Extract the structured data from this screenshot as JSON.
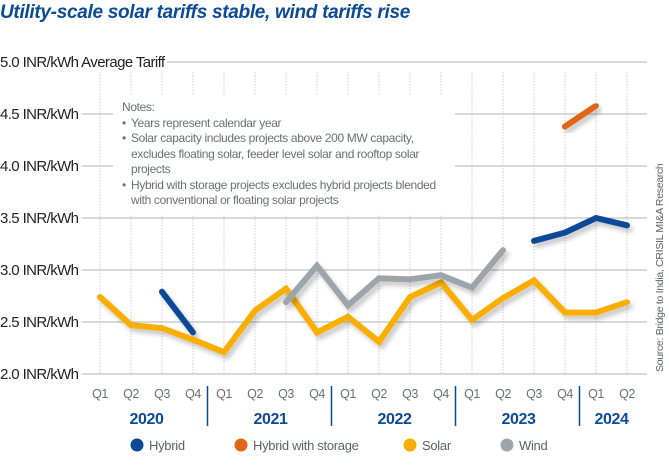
{
  "title": "Utility-scale solar tariffs stable, wind tariffs rise",
  "notes": {
    "heading": "Notes:",
    "items": [
      "Years represent calendar year",
      "Solar capacity includes projects above 200 MW capacity, excludes floating solar, feeder level solar and rooftop solar projects",
      "Hybrid with storage projects excludes hybrid projects blended with conventional or floating solar projects"
    ]
  },
  "source": "Source: Bridge to India, CRISIL MI&A Research",
  "chart_data": {
    "type": "line",
    "title": "Utility-scale solar tariffs stable, wind tariffs rise",
    "ylabel": "Average Tariff",
    "xlabel": "",
    "ylim": [
      2.0,
      5.0
    ],
    "yticks": [
      5.0,
      4.5,
      4.0,
      3.5,
      3.0,
      2.5,
      2.0
    ],
    "ytick_labels": [
      "5.0 INR/kWh Average Tariff",
      "4.5 INR/kWh",
      "4.0 INR/kWh",
      "3.5 INR/kWh",
      "3.0 INR/kWh",
      "2.5 INR/kWh",
      "2.0 INR/kWh"
    ],
    "grid": true,
    "x": [
      "Q1 2020",
      "Q2 2020",
      "Q3 2020",
      "Q4 2020",
      "Q1 2021",
      "Q2 2021",
      "Q3 2021",
      "Q4 2021",
      "Q1 2022",
      "Q2 2022",
      "Q3 2022",
      "Q4 2022",
      "Q1 2023",
      "Q2 2023",
      "Q3 2023",
      "Q4 2023",
      "Q1 2024",
      "Q2 2024"
    ],
    "quarter_labels": [
      "Q1",
      "Q2",
      "Q3",
      "Q4",
      "Q1",
      "Q2",
      "Q3",
      "Q4",
      "Q1",
      "Q2",
      "Q3",
      "Q4",
      "Q1",
      "Q2",
      "Q3",
      "Q4",
      "Q1",
      "Q2"
    ],
    "year_groups": [
      {
        "label": "2020",
        "start": 0,
        "end": 3
      },
      {
        "label": "2021",
        "start": 4,
        "end": 7
      },
      {
        "label": "2022",
        "start": 8,
        "end": 11
      },
      {
        "label": "2023",
        "start": 12,
        "end": 15
      },
      {
        "label": "2024",
        "start": 16,
        "end": 17
      }
    ],
    "legend_position": "bottom",
    "series": [
      {
        "name": "Hybrid",
        "color": "#0b4a96",
        "values": [
          null,
          null,
          2.79,
          2.4,
          null,
          null,
          null,
          null,
          null,
          null,
          null,
          null,
          null,
          null,
          3.28,
          3.36,
          3.5,
          3.43
        ]
      },
      {
        "name": "Hybrid with storage",
        "color": "#e06615",
        "values": [
          null,
          null,
          null,
          null,
          null,
          null,
          null,
          null,
          null,
          null,
          null,
          null,
          null,
          null,
          null,
          4.38,
          4.58,
          null
        ]
      },
      {
        "name": "Solar",
        "color": "#f9ae00",
        "values": [
          2.74,
          2.47,
          2.44,
          2.33,
          2.21,
          2.61,
          2.82,
          2.4,
          2.55,
          2.31,
          2.74,
          2.88,
          2.52,
          2.73,
          2.9,
          2.59,
          2.59,
          2.69
        ]
      },
      {
        "name": "Wind",
        "color": "#9ea5aa",
        "values": [
          null,
          null,
          null,
          null,
          null,
          null,
          2.69,
          3.04,
          2.66,
          2.92,
          2.91,
          2.95,
          2.83,
          3.19,
          null,
          null,
          null,
          null
        ]
      }
    ]
  }
}
